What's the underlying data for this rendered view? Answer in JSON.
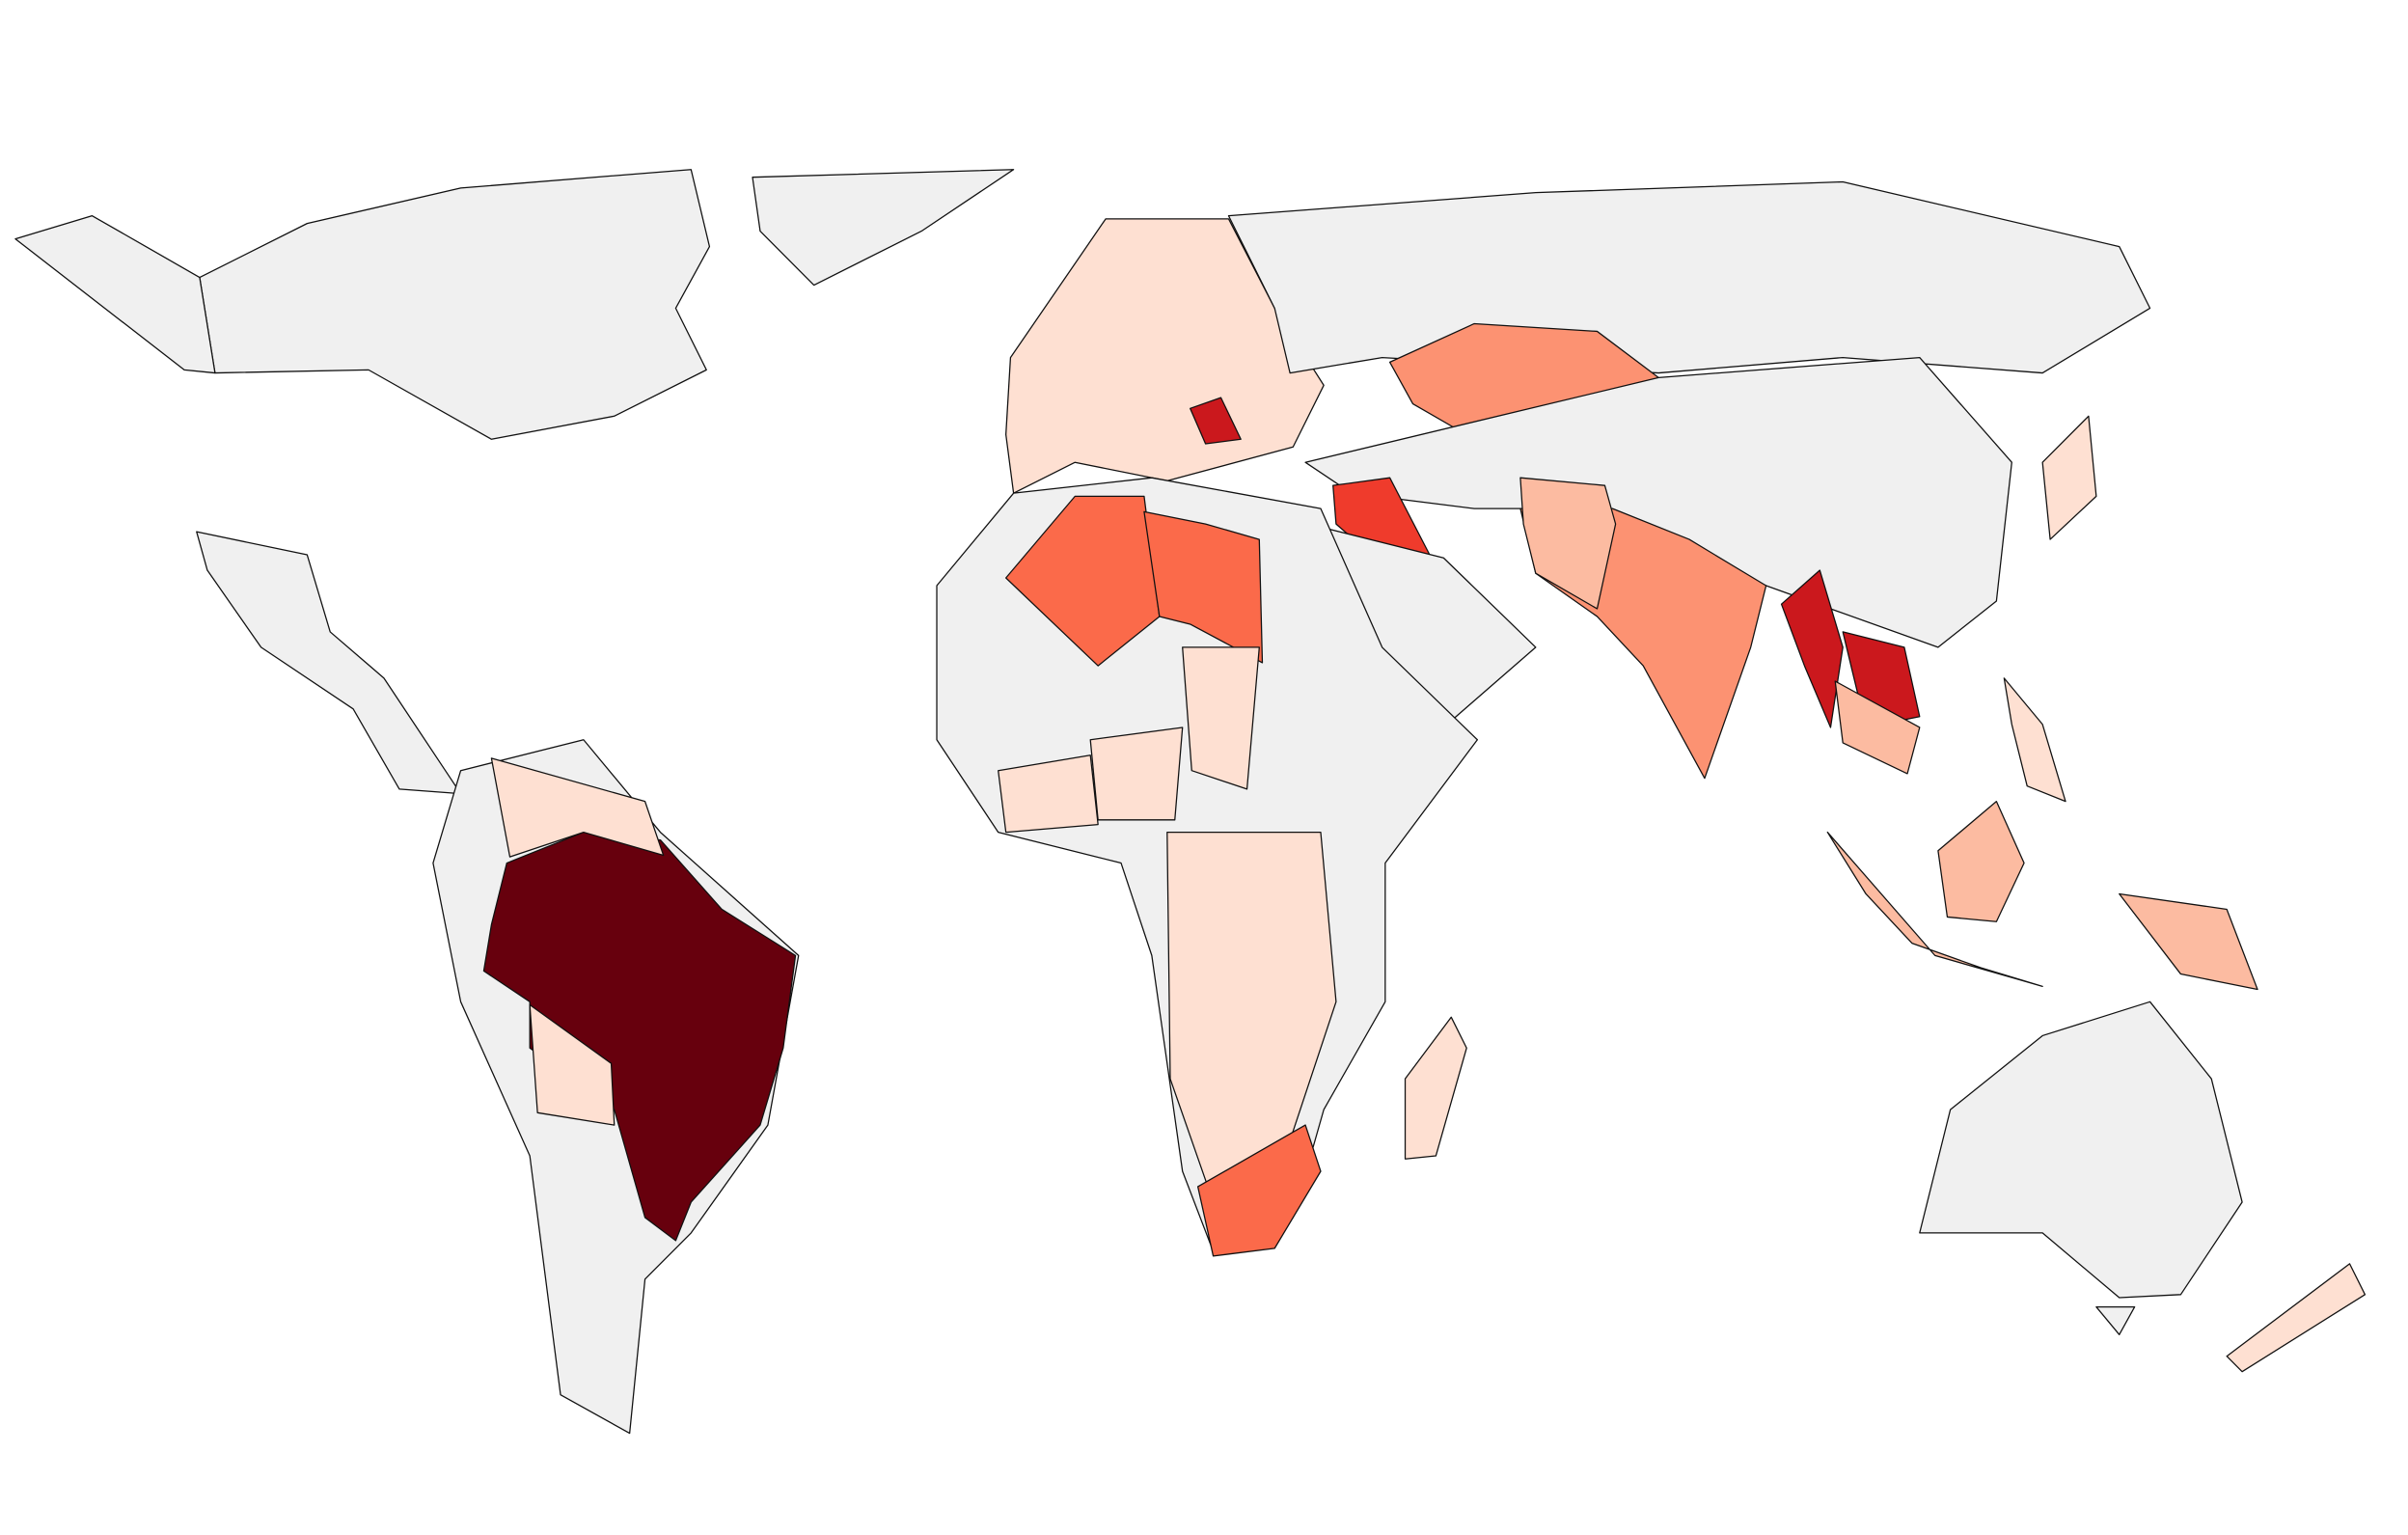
{
  "map": {
    "type": "choropleth",
    "background": "#ffffff",
    "no_data_color": "#f0f0f0",
    "border_color": "#111111",
    "color_scale": [
      "#f0f0f0",
      "#fee0d2",
      "#fcbba1",
      "#fc9272",
      "#fb6a4a",
      "#ef3b2c",
      "#cb181d",
      "#67000d"
    ],
    "region_levels": [
      0,
      0,
      0,
      0,
      7,
      1,
      1,
      1,
      0,
      3,
      0,
      3,
      2,
      6,
      6,
      2,
      5,
      0,
      0,
      4,
      4,
      1,
      1,
      1,
      4,
      1,
      2,
      2,
      0,
      1,
      1,
      0,
      1,
      6,
      2,
      0,
      1
    ]
  }
}
